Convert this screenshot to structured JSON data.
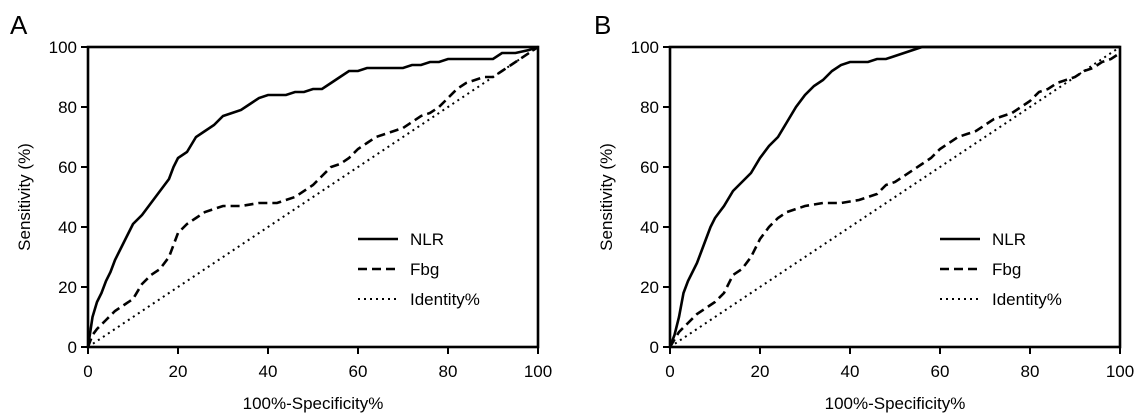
{
  "chart_data": [
    {
      "panel_label": "A",
      "type": "line",
      "xlabel": "100%-Specificity%",
      "ylabel": "Sensitivity (%)",
      "xlim": [
        0,
        100
      ],
      "ylim": [
        0,
        100
      ],
      "x_ticks": [
        "0",
        "20",
        "40",
        "60",
        "80",
        "100"
      ],
      "y_ticks": [
        "0",
        "20",
        "40",
        "60",
        "80",
        "100"
      ],
      "grid": false,
      "legend_position": "bottom-right",
      "series": [
        {
          "name": "NLR",
          "style": "solid",
          "x": [
            0,
            0.5,
            1,
            2,
            3,
            4,
            5,
            6,
            7,
            8,
            9,
            10,
            12,
            14,
            16,
            18,
            19,
            20,
            22,
            24,
            26,
            28,
            30,
            32,
            34,
            36,
            38,
            40,
            42,
            44,
            46,
            48,
            50,
            52,
            54,
            56,
            58,
            60,
            62,
            64,
            66,
            68,
            70,
            72,
            74,
            76,
            78,
            80,
            85,
            90,
            92,
            95,
            98,
            100
          ],
          "y": [
            0,
            5,
            10,
            15,
            18,
            22,
            25,
            29,
            32,
            35,
            38,
            41,
            44,
            48,
            52,
            56,
            60,
            63,
            65,
            70,
            72,
            74,
            77,
            78,
            79,
            81,
            83,
            84,
            84,
            84,
            85,
            85,
            86,
            86,
            88,
            90,
            92,
            92,
            93,
            93,
            93,
            93,
            93,
            94,
            94,
            95,
            95,
            96,
            96,
            96,
            98,
            98,
            99,
            100
          ]
        },
        {
          "name": "Fbg",
          "style": "dashed",
          "x": [
            0,
            1,
            2,
            4,
            6,
            8,
            10,
            12,
            14,
            16,
            18,
            20,
            22,
            24,
            26,
            28,
            30,
            34,
            38,
            42,
            46,
            50,
            52,
            54,
            56,
            58,
            60,
            62,
            64,
            66,
            68,
            70,
            72,
            74,
            76,
            78,
            80,
            82,
            84,
            86,
            88,
            90,
            92,
            94,
            96,
            98,
            100
          ],
          "y": [
            0,
            4,
            6,
            9,
            12,
            14,
            16,
            21,
            24,
            26,
            30,
            38,
            41,
            43,
            45,
            46,
            47,
            47,
            48,
            48,
            50,
            54,
            57,
            60,
            61,
            63,
            66,
            68,
            70,
            71,
            72,
            73,
            75,
            77,
            78,
            80,
            83,
            86,
            88,
            89,
            90,
            90,
            92,
            94,
            96,
            98,
            100
          ]
        },
        {
          "name": "Identity%",
          "style": "dotted",
          "x": [
            0,
            100
          ],
          "y": [
            0,
            100
          ]
        }
      ]
    },
    {
      "panel_label": "B",
      "type": "line",
      "xlabel": "100%-Specificity%",
      "ylabel": "Sensitivity (%)",
      "xlim": [
        0,
        100
      ],
      "ylim": [
        0,
        100
      ],
      "x_ticks": [
        "0",
        "20",
        "40",
        "60",
        "80",
        "100"
      ],
      "y_ticks": [
        "0",
        "20",
        "40",
        "60",
        "80",
        "100"
      ],
      "grid": false,
      "legend_position": "bottom-right",
      "series": [
        {
          "name": "NLR",
          "style": "solid",
          "x": [
            0,
            1,
            2,
            3,
            4,
            5,
            6,
            7,
            8,
            9,
            10,
            11,
            12,
            14,
            16,
            18,
            20,
            22,
            24,
            26,
            28,
            30,
            32,
            34,
            36,
            38,
            40,
            42,
            44,
            46,
            48,
            50,
            52,
            54,
            56,
            100
          ],
          "y": [
            0,
            4,
            10,
            18,
            22,
            25,
            28,
            32,
            36,
            40,
            43,
            45,
            47,
            52,
            55,
            58,
            63,
            67,
            70,
            75,
            80,
            84,
            87,
            89,
            92,
            94,
            95,
            95,
            95,
            96,
            96,
            97,
            98,
            99,
            100,
            100
          ]
        },
        {
          "name": "Fbg",
          "style": "dashed",
          "x": [
            0,
            2,
            4,
            6,
            8,
            10,
            12,
            14,
            16,
            18,
            20,
            22,
            24,
            26,
            28,
            30,
            34,
            38,
            42,
            46,
            48,
            50,
            52,
            54,
            56,
            58,
            60,
            62,
            64,
            66,
            68,
            70,
            72,
            74,
            76,
            78,
            80,
            82,
            84,
            86,
            88,
            90,
            92,
            94,
            96,
            98,
            100
          ],
          "y": [
            0,
            5,
            8,
            11,
            13,
            15,
            18,
            24,
            26,
            30,
            36,
            40,
            43,
            45,
            46,
            47,
            48,
            48,
            49,
            51,
            54,
            55,
            57,
            59,
            61,
            63,
            66,
            68,
            70,
            71,
            72,
            74,
            76,
            77,
            78,
            80,
            82,
            85,
            86,
            88,
            89,
            90,
            92,
            93,
            95,
            96,
            98
          ]
        },
        {
          "name": "Identity%",
          "style": "dotted",
          "x": [
            0,
            100
          ],
          "y": [
            0,
            100
          ]
        }
      ]
    }
  ]
}
